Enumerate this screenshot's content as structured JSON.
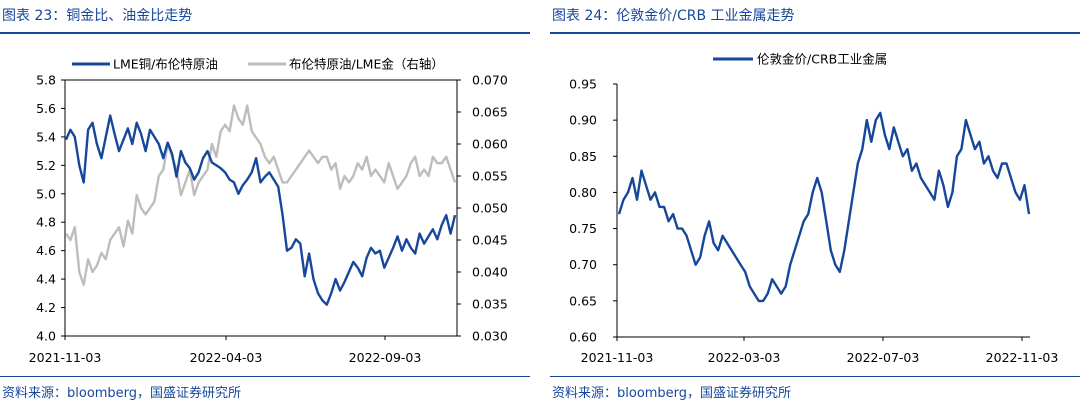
{
  "left": {
    "figure_title": "图表 23：铜金比、油金比走势",
    "source": "资料来源：bloomberg，国盛证券研究所"
  },
  "right": {
    "figure_title": "图表 24：伦敦金价/CRB 工业金属走势",
    "source": "资料来源：bloomberg，国盛证券研究所"
  },
  "chart_data": [
    {
      "type": "line",
      "title": "铜金比、油金比走势",
      "x_tick_labels": [
        "2021-11-03",
        "2022-04-03",
        "2022-09-03"
      ],
      "y_left": {
        "ylim": [
          4.0,
          5.8
        ],
        "ticks": [
          "4.0",
          "4.2",
          "4.4",
          "4.6",
          "4.8",
          "5.0",
          "5.2",
          "5.4",
          "5.6",
          "5.8"
        ]
      },
      "y_right": {
        "ylim": [
          0.03,
          0.07
        ],
        "ticks": [
          "0.030",
          "0.035",
          "0.040",
          "0.045",
          "0.050",
          "0.055",
          "0.060",
          "0.065",
          "0.070"
        ]
      },
      "legend": "top",
      "series": [
        {
          "name": "LME铜/布伦特原油",
          "axis": "left",
          "color": "#16479a",
          "values": [
            5.38,
            5.45,
            5.4,
            5.2,
            5.08,
            5.45,
            5.5,
            5.35,
            5.25,
            5.4,
            5.55,
            5.42,
            5.3,
            5.38,
            5.46,
            5.35,
            5.5,
            5.42,
            5.3,
            5.45,
            5.4,
            5.35,
            5.25,
            5.36,
            5.28,
            5.12,
            5.3,
            5.22,
            5.18,
            5.1,
            5.15,
            5.25,
            5.3,
            5.22,
            5.2,
            5.18,
            5.15,
            5.1,
            5.08,
            5.0,
            5.06,
            5.1,
            5.15,
            5.25,
            5.08,
            5.12,
            5.15,
            5.1,
            5.05,
            4.85,
            4.6,
            4.62,
            4.68,
            4.65,
            4.42,
            4.58,
            4.4,
            4.3,
            4.25,
            4.22,
            4.3,
            4.4,
            4.32,
            4.38,
            4.45,
            4.52,
            4.48,
            4.42,
            4.55,
            4.62,
            4.58,
            4.6,
            4.48,
            4.55,
            4.62,
            4.7,
            4.6,
            4.68,
            4.62,
            4.58,
            4.72,
            4.65,
            4.7,
            4.75,
            4.68,
            4.78,
            4.85,
            4.72,
            4.85
          ]
        },
        {
          "name": "布伦特原油/LME金（右轴）",
          "axis": "right",
          "color": "#bdbdbd",
          "values": [
            0.046,
            0.045,
            0.047,
            0.04,
            0.038,
            0.042,
            0.04,
            0.041,
            0.043,
            0.042,
            0.045,
            0.046,
            0.047,
            0.044,
            0.048,
            0.046,
            0.052,
            0.05,
            0.049,
            0.05,
            0.051,
            0.055,
            0.056,
            0.06,
            0.058,
            0.056,
            0.052,
            0.054,
            0.056,
            0.052,
            0.054,
            0.055,
            0.056,
            0.06,
            0.058,
            0.062,
            0.063,
            0.062,
            0.066,
            0.064,
            0.063,
            0.066,
            0.062,
            0.061,
            0.06,
            0.058,
            0.057,
            0.058,
            0.056,
            0.054,
            0.054,
            0.055,
            0.056,
            0.057,
            0.058,
            0.059,
            0.058,
            0.057,
            0.058,
            0.058,
            0.056,
            0.057,
            0.053,
            0.055,
            0.054,
            0.055,
            0.057,
            0.056,
            0.058,
            0.055,
            0.056,
            0.055,
            0.054,
            0.057,
            0.055,
            0.053,
            0.054,
            0.055,
            0.057,
            0.058,
            0.055,
            0.056,
            0.055,
            0.058,
            0.057,
            0.057,
            0.058,
            0.056,
            0.054
          ]
        }
      ]
    },
    {
      "type": "line",
      "title": "伦敦金价/CRB 工业金属走势",
      "x_tick_labels": [
        "2021-11-03",
        "2022-03-03",
        "2022-07-03",
        "2022-11-03"
      ],
      "ylim": [
        0.6,
        0.95
      ],
      "y_ticks": [
        "0.60",
        "0.65",
        "0.70",
        "0.75",
        "0.80",
        "0.85",
        "0.90",
        "0.95"
      ],
      "legend": "top",
      "series": [
        {
          "name": "伦敦金价/CRB工业金属",
          "color": "#16479a",
          "values": [
            0.77,
            0.79,
            0.8,
            0.82,
            0.79,
            0.83,
            0.81,
            0.79,
            0.8,
            0.78,
            0.78,
            0.76,
            0.77,
            0.75,
            0.75,
            0.74,
            0.72,
            0.7,
            0.71,
            0.74,
            0.76,
            0.73,
            0.72,
            0.74,
            0.73,
            0.72,
            0.71,
            0.7,
            0.69,
            0.67,
            0.66,
            0.65,
            0.65,
            0.66,
            0.68,
            0.67,
            0.66,
            0.67,
            0.7,
            0.72,
            0.74,
            0.76,
            0.77,
            0.8,
            0.82,
            0.8,
            0.76,
            0.72,
            0.7,
            0.69,
            0.72,
            0.76,
            0.8,
            0.84,
            0.86,
            0.9,
            0.87,
            0.9,
            0.91,
            0.88,
            0.86,
            0.89,
            0.87,
            0.85,
            0.86,
            0.83,
            0.84,
            0.82,
            0.81,
            0.8,
            0.79,
            0.83,
            0.81,
            0.78,
            0.8,
            0.85,
            0.86,
            0.9,
            0.88,
            0.86,
            0.87,
            0.84,
            0.85,
            0.83,
            0.82,
            0.84,
            0.84,
            0.82,
            0.8,
            0.79,
            0.81,
            0.77
          ]
        }
      ]
    }
  ]
}
